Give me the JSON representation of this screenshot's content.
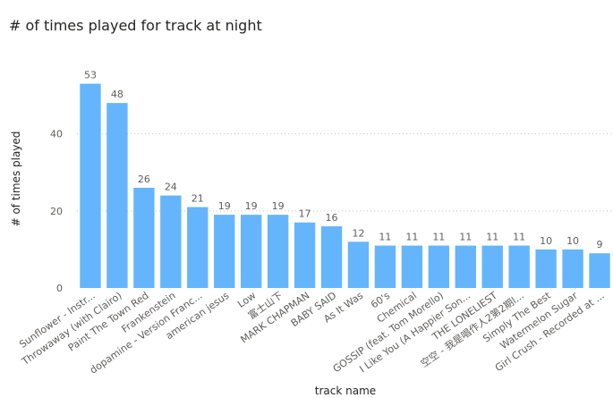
{
  "chart_data": {
    "type": "bar",
    "title": "# of times played for track at night",
    "xlabel": "track name",
    "ylabel": "# of times played",
    "ylim": [
      0,
      55
    ],
    "yticks": [
      0,
      20,
      40
    ],
    "grid": true,
    "bar_color": "#64b5fc",
    "categories": [
      "Sunflower - Instr...",
      "Throwaway (with Clairo)",
      "Paint The Town Red",
      "Frankenstein",
      "dopamine - Version Franc...",
      "american jesus",
      "Low",
      "富士山下",
      "MARK CHAPMAN",
      "BABY SAID",
      "As It Was",
      "60's",
      "Chemical",
      "GOSSIP (feat. Tom Morello)",
      "I Like You (A Happier Son...",
      "THE LONELIEST",
      "空空 - 我是唱作人2第2期l...",
      "Simply The Best",
      "Watermelon Sugar",
      "Girl Crush - Recorded at ..."
    ],
    "values": [
      53,
      48,
      26,
      24,
      21,
      19,
      19,
      19,
      17,
      16,
      12,
      11,
      11,
      11,
      11,
      11,
      11,
      10,
      10,
      9
    ]
  }
}
